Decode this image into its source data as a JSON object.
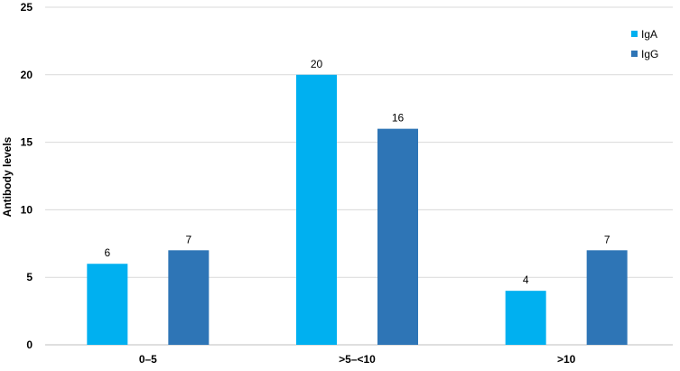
{
  "chart_data": {
    "type": "bar",
    "title": "",
    "xlabel": "",
    "ylabel": "Antibody levels",
    "categories": [
      "0–5",
      ">5–<10",
      ">10"
    ],
    "series": [
      {
        "name": "IgA",
        "values": [
          6,
          20,
          4
        ],
        "color": "#00B0F0"
      },
      {
        "name": "IgG",
        "values": [
          7,
          16,
          7
        ],
        "color": "#2E75B6"
      }
    ],
    "ylim": [
      0,
      25
    ],
    "yticks": [
      0,
      5,
      10,
      15,
      20,
      25
    ],
    "grid": true,
    "legend_position": "top-right",
    "data_labels": true
  }
}
